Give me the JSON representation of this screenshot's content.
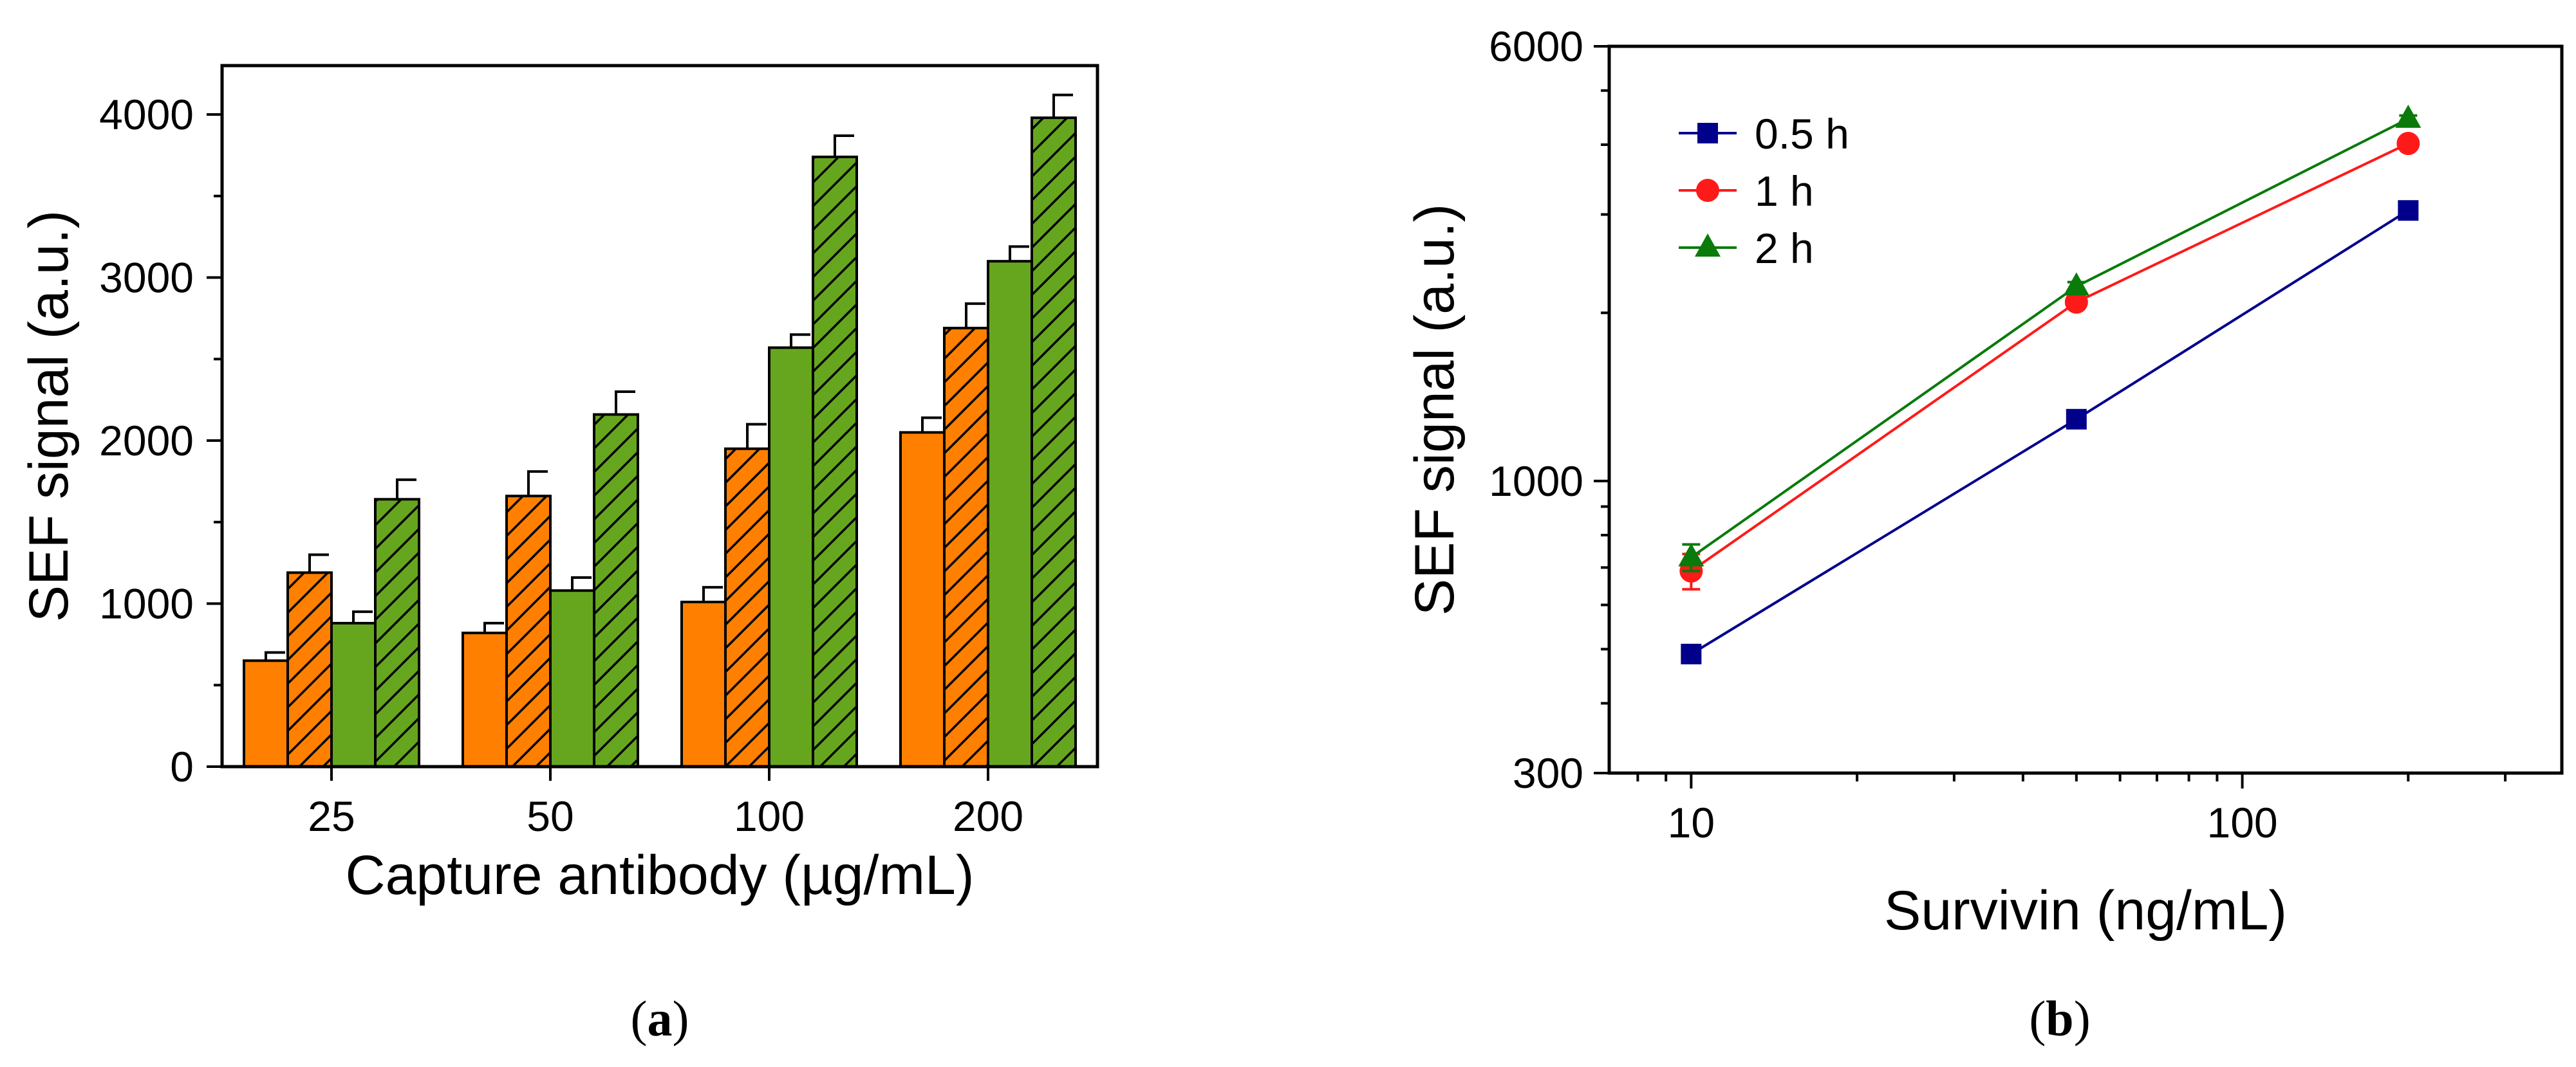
{
  "colors": {
    "orange": "#FF8000",
    "green": "#66A61E",
    "series_05h": "#00008B",
    "series_1h": "#FF1A1A",
    "series_2h": "#0A7A0A"
  },
  "panel_a": {
    "label_open": "(",
    "label_letter": "a",
    "label_close": ")"
  },
  "panel_b": {
    "label_open": "(",
    "label_letter": "b",
    "label_close": ")"
  },
  "chart_data": [
    {
      "type": "bar",
      "title": "",
      "xlabel": "Capture antibody (µg/mL)",
      "ylabel": "SEF signal (a.u.)",
      "ylim": [
        0,
        4300
      ],
      "yticks": [
        0,
        1000,
        2000,
        3000,
        4000
      ],
      "yticklabels": [
        "0",
        "1000",
        "2000",
        "3000",
        "4000"
      ],
      "categories": [
        "25",
        "50",
        "100",
        "200"
      ],
      "series": [
        {
          "name": "orange solid",
          "fill": "orange",
          "hatched": false,
          "values": [
            650,
            820,
            1010,
            2050
          ],
          "errors": [
            50,
            60,
            90,
            90
          ]
        },
        {
          "name": "orange hatched",
          "fill": "orange",
          "hatched": true,
          "values": [
            1190,
            1660,
            1950,
            2690
          ],
          "errors": [
            110,
            150,
            150,
            150
          ]
        },
        {
          "name": "green solid",
          "fill": "green",
          "hatched": false,
          "values": [
            880,
            1080,
            2570,
            3100
          ],
          "errors": [
            70,
            80,
            80,
            90
          ]
        },
        {
          "name": "green hatched",
          "fill": "green",
          "hatched": true,
          "values": [
            1640,
            2160,
            3740,
            3980
          ],
          "errors": [
            120,
            140,
            130,
            140
          ]
        }
      ]
    },
    {
      "type": "line",
      "title": "",
      "xlabel": "Survivin (ng/mL)",
      "ylabel": "SEF signal (a.u.)",
      "xscale": "log",
      "yscale": "log",
      "xlim": [
        7.1,
        380
      ],
      "ylim": [
        300,
        6000
      ],
      "xticks": [
        10,
        100
      ],
      "xticklabels": [
        "10",
        "100"
      ],
      "yticks": [
        300,
        1000,
        6000
      ],
      "yticklabels": [
        "300",
        "1000",
        "6000"
      ],
      "legend_position": "top-left",
      "x": [
        10,
        50,
        200
      ],
      "series": [
        {
          "name": "0.5 h",
          "marker": "square",
          "color": "series_05h",
          "values": [
            490,
            1290,
            3050
          ],
          "errors": [
            15,
            30,
            50
          ]
        },
        {
          "name": "1 h",
          "marker": "circle",
          "color": "series_1h",
          "values": [
            690,
            2090,
            4020
          ],
          "errors": [
            50,
            40,
            60
          ]
        },
        {
          "name": "2 h",
          "marker": "triangle",
          "color": "series_2h",
          "values": [
            730,
            2230,
            4450
          ],
          "errors": [
            40,
            40,
            60
          ]
        }
      ]
    }
  ]
}
